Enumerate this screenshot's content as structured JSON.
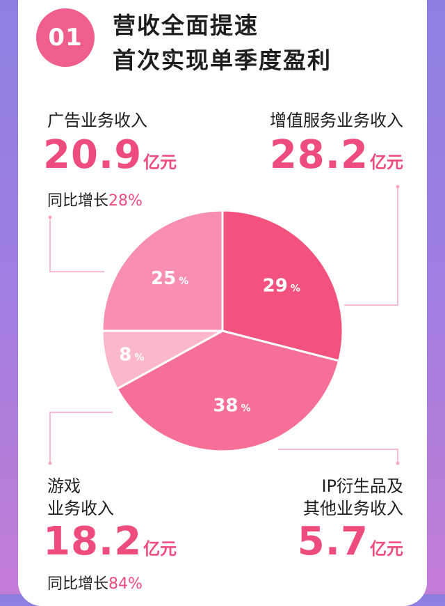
{
  "badge": "01",
  "title": [
    "营收全面提速",
    "首次实现单季度盈利"
  ],
  "unit": "亿元",
  "segments": {
    "ad": {
      "label": "广告业务收入",
      "value": "20.9",
      "yoy_label": "同比增长",
      "yoy": "28%"
    },
    "vas": {
      "label": "增值服务业务收入",
      "value": "28.2"
    },
    "game": {
      "label_line1": "游戏",
      "label_line2": "业务收入",
      "value": "18.2",
      "yoy_label": "同比增长",
      "yoy": "84%"
    },
    "ip": {
      "label_line1": "IP衍生品及",
      "label_line2": "其他业务收入",
      "value": "5.7"
    }
  },
  "colors": {
    "ad": "#f2527d",
    "vas": "#f66f97",
    "ip": "#fbb8cb",
    "game": "#f98fb0",
    "accent": "#ee4c7c",
    "line": "#f6a8bd"
  },
  "chart_data": {
    "type": "pie",
    "slices": [
      {
        "key": "ad",
        "value": 29
      },
      {
        "key": "vas",
        "value": 38
      },
      {
        "key": "ip",
        "value": 8
      },
      {
        "key": "game",
        "value": 25
      }
    ],
    "percent_symbol": "%"
  }
}
